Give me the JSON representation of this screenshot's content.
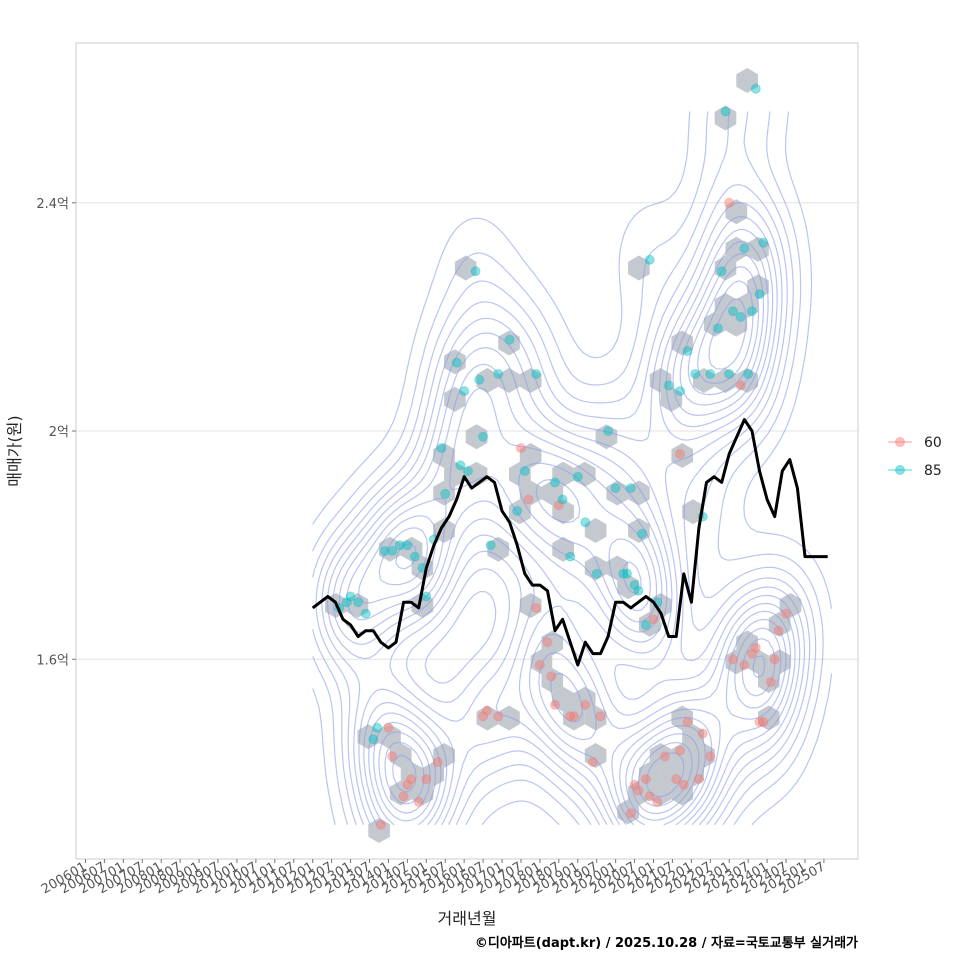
{
  "chart_data": {
    "type": "scatter",
    "xlabel": "거래년월",
    "ylabel": "매매가(원)",
    "caption": "©디아파트(dapt.kr) / 2025.10.28 / 자료=국토교통부 실거래가",
    "x_ticks": [
      "200601",
      "200607",
      "200701",
      "200707",
      "200801",
      "200807",
      "200901",
      "200907",
      "201001",
      "201007",
      "201101",
      "201107",
      "201201",
      "201207",
      "201301",
      "201307",
      "201401",
      "201407",
      "201501",
      "201507",
      "201601",
      "201607",
      "201701",
      "201707",
      "201801",
      "201807",
      "201901",
      "201907",
      "202001",
      "202007",
      "202101",
      "202107",
      "202201",
      "202207",
      "202301",
      "202307",
      "202401",
      "202407",
      "202501",
      "202507"
    ],
    "x_range": [
      2005.75,
      2026.4
    ],
    "y_range": [
      1.25,
      2.68
    ],
    "y_ticks": [
      {
        "value": 1.6,
        "label": "1.6억"
      },
      {
        "value": 2.0,
        "label": "2억"
      },
      {
        "value": 2.4,
        "label": "2.4억"
      }
    ],
    "legend": {
      "placement": "right",
      "entries": [
        {
          "name": "60",
          "color": "#F8766D"
        },
        {
          "name": "85",
          "color": "#00BFC4"
        }
      ]
    },
    "colors": {
      "series_60": "#F8766D",
      "series_85": "#00BFC4",
      "hex_fill": "#b7bcc4",
      "contour": "#8a9ee8",
      "trend": "#000000",
      "grid": "#e3e3e3",
      "panel_border": "#cccccc"
    },
    "series": [
      {
        "name": "60",
        "points": [
          [
            2013.8,
            1.31
          ],
          [
            2014.0,
            1.48
          ],
          [
            2014.1,
            1.43
          ],
          [
            2014.4,
            1.36
          ],
          [
            2014.5,
            1.38
          ],
          [
            2014.6,
            1.39
          ],
          [
            2014.8,
            1.35
          ],
          [
            2015.0,
            1.39
          ],
          [
            2015.3,
            1.42
          ],
          [
            2016.5,
            1.5
          ],
          [
            2016.6,
            1.51
          ],
          [
            2016.9,
            1.5
          ],
          [
            2017.5,
            1.97
          ],
          [
            2017.7,
            1.88
          ],
          [
            2017.9,
            1.69
          ],
          [
            2018.0,
            1.59
          ],
          [
            2018.2,
            1.63
          ],
          [
            2018.3,
            1.57
          ],
          [
            2018.4,
            1.52
          ],
          [
            2018.5,
            1.87
          ],
          [
            2018.8,
            1.5
          ],
          [
            2018.9,
            1.5
          ],
          [
            2019.2,
            1.52
          ],
          [
            2019.4,
            1.42
          ],
          [
            2019.6,
            1.5
          ],
          [
            2020.4,
            1.33
          ],
          [
            2020.5,
            1.38
          ],
          [
            2020.6,
            1.37
          ],
          [
            2020.8,
            1.39
          ],
          [
            2020.9,
            1.36
          ],
          [
            2021.1,
            1.35
          ],
          [
            2021.3,
            1.43
          ],
          [
            2021.6,
            1.39
          ],
          [
            2021.7,
            1.44
          ],
          [
            2021.8,
            1.38
          ],
          [
            2021.9,
            1.49
          ],
          [
            2022.2,
            1.39
          ],
          [
            2022.3,
            1.47
          ],
          [
            2022.5,
            1.43
          ],
          [
            2023.0,
            2.4
          ],
          [
            2023.1,
            1.6
          ],
          [
            2023.3,
            2.08
          ],
          [
            2023.4,
            1.59
          ],
          [
            2023.6,
            1.61
          ],
          [
            2023.7,
            1.62
          ],
          [
            2023.8,
            1.49
          ],
          [
            2023.9,
            1.49
          ],
          [
            2024.1,
            1.56
          ],
          [
            2024.2,
            1.6
          ],
          [
            2024.3,
            1.65
          ],
          [
            2024.5,
            1.68
          ],
          [
            2021.7,
            1.96
          ],
          [
            2021.0,
            1.67
          ]
        ]
      },
      {
        "name": "85",
        "points": [
          [
            2012.7,
            1.69
          ],
          [
            2012.9,
            1.7
          ],
          [
            2013.0,
            1.71
          ],
          [
            2013.2,
            1.7
          ],
          [
            2013.4,
            1.68
          ],
          [
            2013.6,
            1.46
          ],
          [
            2013.7,
            1.48
          ],
          [
            2013.9,
            1.79
          ],
          [
            2014.1,
            1.79
          ],
          [
            2014.3,
            1.8
          ],
          [
            2014.5,
            1.8
          ],
          [
            2014.7,
            1.78
          ],
          [
            2014.9,
            1.76
          ],
          [
            2015.0,
            1.71
          ],
          [
            2015.2,
            1.81
          ],
          [
            2015.4,
            1.97
          ],
          [
            2015.5,
            1.89
          ],
          [
            2015.8,
            2.12
          ],
          [
            2015.9,
            1.94
          ],
          [
            2016.0,
            2.07
          ],
          [
            2016.1,
            1.93
          ],
          [
            2016.3,
            2.28
          ],
          [
            2016.4,
            2.09
          ],
          [
            2016.5,
            1.99
          ],
          [
            2016.7,
            1.8
          ],
          [
            2016.9,
            2.1
          ],
          [
            2017.2,
            2.16
          ],
          [
            2017.4,
            1.86
          ],
          [
            2017.6,
            1.93
          ],
          [
            2017.9,
            2.1
          ],
          [
            2018.4,
            1.91
          ],
          [
            2018.6,
            1.88
          ],
          [
            2018.8,
            1.78
          ],
          [
            2019.0,
            1.92
          ],
          [
            2019.2,
            1.84
          ],
          [
            2019.5,
            1.75
          ],
          [
            2019.8,
            2.0
          ],
          [
            2020.0,
            1.9
          ],
          [
            2020.2,
            1.75
          ],
          [
            2020.3,
            1.75
          ],
          [
            2020.4,
            1.9
          ],
          [
            2020.5,
            1.73
          ],
          [
            2020.6,
            1.72
          ],
          [
            2020.7,
            1.82
          ],
          [
            2020.8,
            1.66
          ],
          [
            2020.9,
            2.3
          ],
          [
            2021.1,
            1.7
          ],
          [
            2021.4,
            2.08
          ],
          [
            2021.7,
            2.07
          ],
          [
            2021.9,
            2.14
          ],
          [
            2022.1,
            2.1
          ],
          [
            2022.3,
            1.85
          ],
          [
            2022.5,
            2.1
          ],
          [
            2022.7,
            2.18
          ],
          [
            2022.8,
            2.28
          ],
          [
            2022.9,
            2.56
          ],
          [
            2023.0,
            2.1
          ],
          [
            2023.1,
            2.21
          ],
          [
            2023.3,
            2.2
          ],
          [
            2023.4,
            2.32
          ],
          [
            2023.5,
            2.1
          ],
          [
            2023.6,
            2.21
          ],
          [
            2023.7,
            2.6
          ],
          [
            2023.8,
            2.24
          ],
          [
            2023.9,
            2.33
          ]
        ]
      }
    ],
    "trend_line": {
      "x": [
        2012.0,
        2012.2,
        2012.4,
        2012.6,
        2012.8,
        2013.0,
        2013.2,
        2013.4,
        2013.6,
        2013.8,
        2014.0,
        2014.2,
        2014.4,
        2014.6,
        2014.8,
        2015.0,
        2015.2,
        2015.4,
        2015.6,
        2015.8,
        2016.0,
        2016.2,
        2016.4,
        2016.6,
        2016.8,
        2017.0,
        2017.2,
        2017.4,
        2017.6,
        2017.8,
        2018.0,
        2018.2,
        2018.4,
        2018.6,
        2018.8,
        2019.0,
        2019.2,
        2019.4,
        2019.6,
        2019.8,
        2020.0,
        2020.2,
        2020.4,
        2020.6,
        2020.8,
        2021.0,
        2021.2,
        2021.4,
        2021.6,
        2021.8,
        2022.0,
        2022.2,
        2022.4,
        2022.6,
        2022.8,
        2023.0,
        2023.2,
        2023.4,
        2023.6,
        2023.8,
        2024.0,
        2024.2,
        2024.4,
        2024.6,
        2024.8,
        2025.0,
        2025.2,
        2025.4,
        2025.6
      ],
      "y": [
        1.69,
        1.7,
        1.71,
        1.7,
        1.67,
        1.66,
        1.64,
        1.65,
        1.65,
        1.63,
        1.62,
        1.63,
        1.7,
        1.7,
        1.69,
        1.76,
        1.8,
        1.83,
        1.85,
        1.88,
        1.92,
        1.9,
        1.91,
        1.92,
        1.91,
        1.86,
        1.84,
        1.8,
        1.75,
        1.73,
        1.73,
        1.72,
        1.65,
        1.67,
        1.63,
        1.59,
        1.63,
        1.61,
        1.61,
        1.64,
        1.7,
        1.7,
        1.69,
        1.7,
        1.71,
        1.7,
        1.68,
        1.64,
        1.64,
        1.75,
        1.7,
        1.83,
        1.91,
        1.92,
        1.91,
        1.96,
        1.99,
        2.02,
        2.0,
        1.93,
        1.88,
        1.85,
        1.93,
        1.95,
        1.9,
        1.78,
        1.78,
        1.78,
        1.78
      ]
    }
  }
}
